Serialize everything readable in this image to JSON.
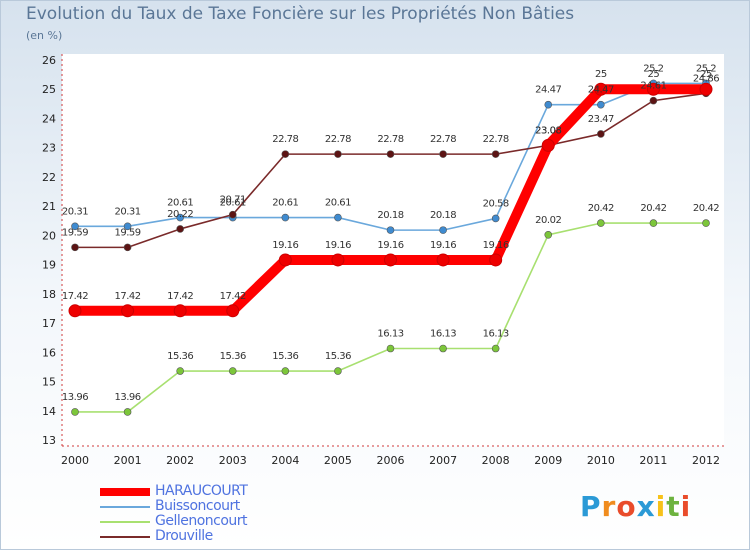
{
  "header": {
    "title": "Evolution du Taux de Taxe Foncière sur les Propriétés Non Bâties",
    "unit": "(en %)"
  },
  "logo": {
    "letters": [
      "P",
      "r",
      "o",
      "x",
      "i",
      "t",
      "i"
    ],
    "colors": [
      "#2b9ad6",
      "#f08c1e",
      "#e94c2b",
      "#2b9ad6",
      "#f7c21a",
      "#6db33f",
      "#e94c2b"
    ]
  },
  "chart_data": {
    "type": "line",
    "title": "Evolution du Taux de Taxe Foncière sur les Propriétés Non Bâties",
    "ylabel": "(en %)",
    "xlabel": "",
    "ylim": [
      13,
      26
    ],
    "yticks": [
      13,
      14,
      15,
      16,
      17,
      18,
      19,
      20,
      21,
      22,
      23,
      24,
      25,
      26
    ],
    "grid": false,
    "legend_position": "bottom-left",
    "x": [
      "2000",
      "2001",
      "2002",
      "2003",
      "2004",
      "2005",
      "2006",
      "2007",
      "2008",
      "2009",
      "2010",
      "2011",
      "2012"
    ],
    "series": [
      {
        "name": "HARAUCOURT",
        "color": "#ff0000",
        "marker": "#ee0000",
        "thick": true,
        "values": [
          17.42,
          17.42,
          17.42,
          17.42,
          19.16,
          19.16,
          19.16,
          19.16,
          19.16,
          23.08,
          25,
          25,
          25
        ],
        "labels": [
          "17.42",
          "17.42",
          "17.42",
          "17.42",
          "19.16",
          "19.16",
          "19.16",
          "19.16",
          "19.16",
          "23.08",
          "25",
          "25",
          "25"
        ]
      },
      {
        "name": "Buissoncourt",
        "color": "#6aa8dc",
        "marker": "#3f8bd0",
        "values": [
          20.31,
          20.31,
          20.61,
          20.61,
          20.61,
          20.61,
          20.18,
          20.18,
          20.58,
          24.47,
          24.47,
          25.2,
          25.2
        ],
        "labels": [
          "20.31",
          "20.31",
          "20.61",
          "20.61",
          "20.61",
          "20.61",
          "20.18",
          "20.18",
          "20.58",
          "24.47",
          "24.47",
          "25.2",
          "25.2"
        ]
      },
      {
        "name": "Gellenoncourt",
        "color": "#a8e070",
        "marker": "#7cc63a",
        "values": [
          13.96,
          13.96,
          15.36,
          15.36,
          15.36,
          15.36,
          16.13,
          16.13,
          16.13,
          20.02,
          20.42,
          20.42,
          20.42
        ],
        "labels": [
          "13.96",
          "13.96",
          "15.36",
          "15.36",
          "15.36",
          "15.36",
          "16.13",
          "16.13",
          "16.13",
          "20.02",
          "20.42",
          "20.42",
          "20.42"
        ]
      },
      {
        "name": "Drouville",
        "color": "#7a2a2a",
        "marker": "#5c1414",
        "values": [
          19.59,
          19.59,
          20.22,
          20.71,
          22.78,
          22.78,
          22.78,
          22.78,
          22.78,
          23.08,
          23.47,
          24.61,
          24.86
        ],
        "labels": [
          "19.59",
          "19.59",
          "20.22",
          "20.71",
          "22.78",
          "22.78",
          "22.78",
          "22.78",
          "22.78",
          "23.08",
          "23.47",
          "24.61",
          "24.86"
        ]
      }
    ]
  }
}
